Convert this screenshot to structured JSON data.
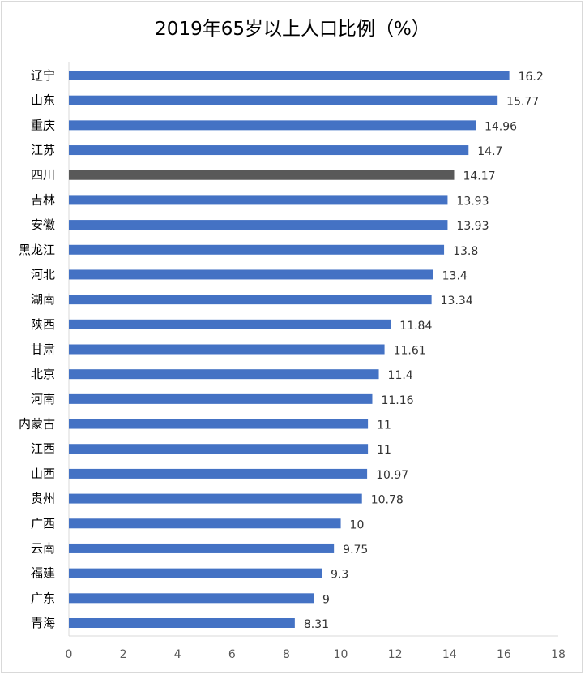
{
  "chart_data": {
    "type": "bar",
    "orientation": "horizontal",
    "title": "2019年65岁以上人口比例（%）",
    "categories": [
      "辽宁",
      "山东",
      "重庆",
      "江苏",
      "四川",
      "吉林",
      "安徽",
      "黑龙江",
      "河北",
      "湖南",
      "陕西",
      "甘肃",
      "北京",
      "河南",
      "内蒙古",
      "江西",
      "山西",
      "贵州",
      "广西",
      "云南",
      "福建",
      "广东",
      "青海"
    ],
    "values": [
      16.2,
      15.77,
      14.96,
      14.7,
      14.17,
      13.93,
      13.93,
      13.8,
      13.4,
      13.34,
      11.84,
      11.61,
      11.4,
      11.16,
      11,
      11,
      10.97,
      10.78,
      10,
      9.75,
      9.3,
      9,
      8.31
    ],
    "value_labels": [
      "16.2",
      "15.77",
      "14.96",
      "14.7",
      "14.17",
      "13.93",
      "13.93",
      "13.8",
      "13.4",
      "13.34",
      "11.84",
      "11.61",
      "11.4",
      "11.16",
      "11",
      "11",
      "10.97",
      "10.78",
      "10",
      "9.75",
      "9.3",
      "9",
      "8.31"
    ],
    "highlight_category": "四川",
    "bar_color": "#4472c4",
    "highlight_color": "#595959",
    "xlim": [
      0,
      18
    ],
    "xticks": [
      0,
      2,
      4,
      6,
      8,
      10,
      12,
      14,
      16,
      18
    ],
    "grid": false,
    "xlabel": "",
    "ylabel": ""
  }
}
